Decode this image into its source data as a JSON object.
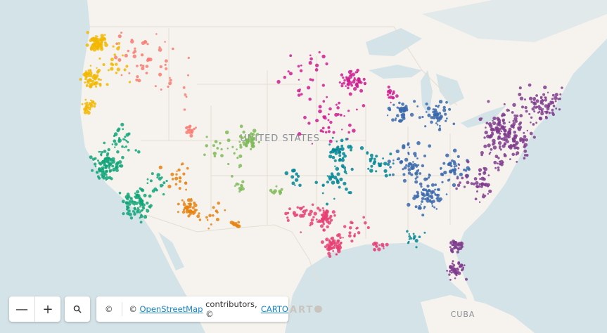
{
  "map": {
    "labels": {
      "country": "UNITED STATES",
      "island": "CUBA"
    },
    "logo": "CARTO",
    "attribution": {
      "info": "©",
      "lead": "©",
      "osm": "OpenStreetMap",
      "middle": "contributors, ©",
      "carto": "CARTO"
    }
  }
}
